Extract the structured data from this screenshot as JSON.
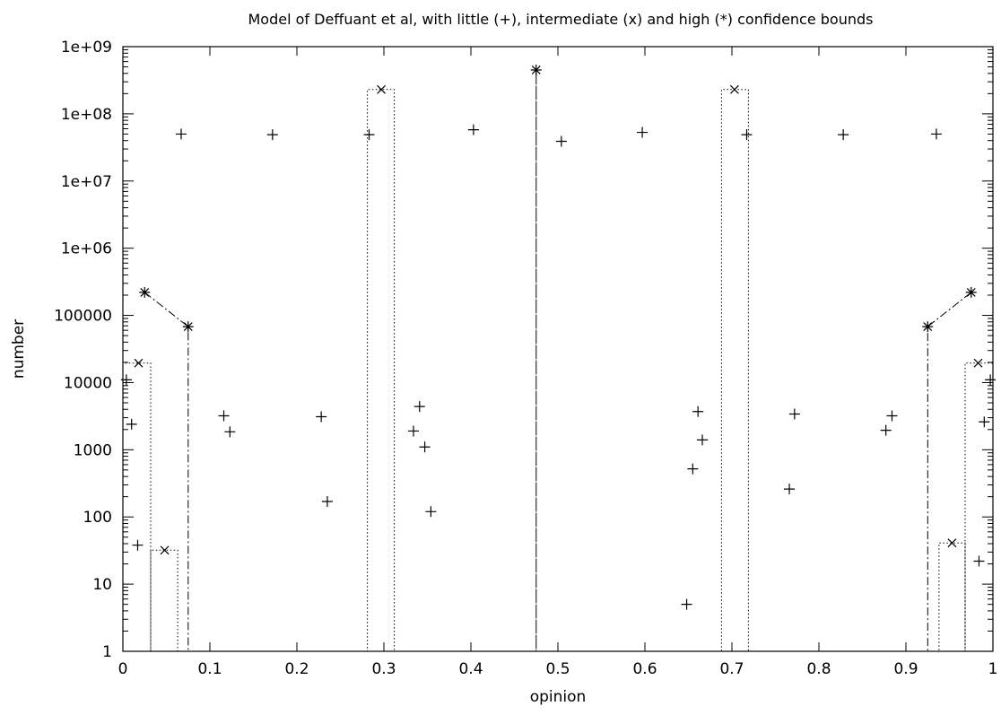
{
  "chart_data": {
    "type": "scatter",
    "title": "Model of Deffuant et al, with little (+), intermediate (x) and high (*) confidence bounds",
    "xlabel": "opinion",
    "ylabel": "number",
    "xlim": [
      0,
      1
    ],
    "ylim": [
      1,
      1000000000
    ],
    "yscale": "log",
    "grid": false,
    "x_tick_labels": [
      "0",
      "0.1",
      "0.2",
      "0.3",
      "0.4",
      "0.5",
      "0.6",
      "0.7",
      "0.8",
      "0.9",
      "1"
    ],
    "y_tick_labels": [
      "1",
      "10",
      "100",
      "1000",
      "10000",
      "100000",
      "1e+06",
      "1e+07",
      "1e+08",
      "1e+09"
    ],
    "series": [
      {
        "marker": "+",
        "style": "points",
        "points": [
          [
            0.004,
            11000
          ],
          [
            0.01,
            2400
          ],
          [
            0.017,
            38
          ],
          [
            0.067,
            50000000
          ],
          [
            0.116,
            3200
          ],
          [
            0.123,
            1850
          ],
          [
            0.172,
            49000000
          ],
          [
            0.228,
            3100
          ],
          [
            0.235,
            170
          ],
          [
            0.283,
            49000000
          ],
          [
            0.334,
            1900
          ],
          [
            0.341,
            4400
          ],
          [
            0.347,
            1100
          ],
          [
            0.354,
            120
          ],
          [
            0.403,
            58000000
          ],
          [
            0.504,
            39000000
          ],
          [
            0.597,
            53000000
          ],
          [
            0.648,
            5
          ],
          [
            0.655,
            520
          ],
          [
            0.661,
            3700
          ],
          [
            0.666,
            1400
          ],
          [
            0.717,
            49000000
          ],
          [
            0.766,
            260
          ],
          [
            0.772,
            3400
          ],
          [
            0.828,
            49000000
          ],
          [
            0.877,
            1950
          ],
          [
            0.884,
            3200
          ],
          [
            0.935,
            50000000
          ],
          [
            0.984,
            22
          ],
          [
            0.99,
            2600
          ],
          [
            0.997,
            11000
          ]
        ]
      },
      {
        "marker": "x",
        "style": "points",
        "points": [
          [
            0.018,
            19500
          ],
          [
            0.048,
            32
          ],
          [
            0.297,
            230000000
          ],
          [
            0.703,
            230000000
          ],
          [
            0.953,
            41
          ],
          [
            0.983,
            19500
          ]
        ],
        "histogram": [
          [
            0,
            1
          ],
          [
            0,
            19500
          ],
          [
            0.032,
            19500
          ],
          [
            0.032,
            1
          ],
          [
            0.032,
            32
          ],
          [
            0.063,
            32
          ],
          [
            0.063,
            1
          ],
          [
            0.281,
            1
          ],
          [
            0.281,
            230000000
          ],
          [
            0.312,
            230000000
          ],
          [
            0.312,
            1
          ],
          [
            0.688,
            1
          ],
          [
            0.688,
            230000000
          ],
          [
            0.719,
            230000000
          ],
          [
            0.719,
            1
          ],
          [
            0.938,
            1
          ],
          [
            0.938,
            41
          ],
          [
            0.968,
            41
          ],
          [
            0.968,
            1
          ],
          [
            0.968,
            19500
          ],
          [
            1,
            19500
          ],
          [
            1,
            1
          ]
        ]
      },
      {
        "marker": "*",
        "style": "linespoints",
        "points": [
          [
            0.025,
            220000
          ],
          [
            0.075,
            68000
          ],
          [
            0.475,
            450000000
          ],
          [
            0.925,
            68000
          ],
          [
            0.975,
            220000
          ]
        ],
        "line": [
          [
            0.025,
            220000
          ],
          [
            0.075,
            68000
          ],
          [
            0.075,
            1
          ],
          [
            0.475,
            1
          ],
          [
            0.475,
            450000000
          ],
          [
            0.475,
            1
          ],
          [
            0.925,
            1
          ],
          [
            0.925,
            68000
          ],
          [
            0.975,
            220000
          ]
        ]
      }
    ]
  }
}
